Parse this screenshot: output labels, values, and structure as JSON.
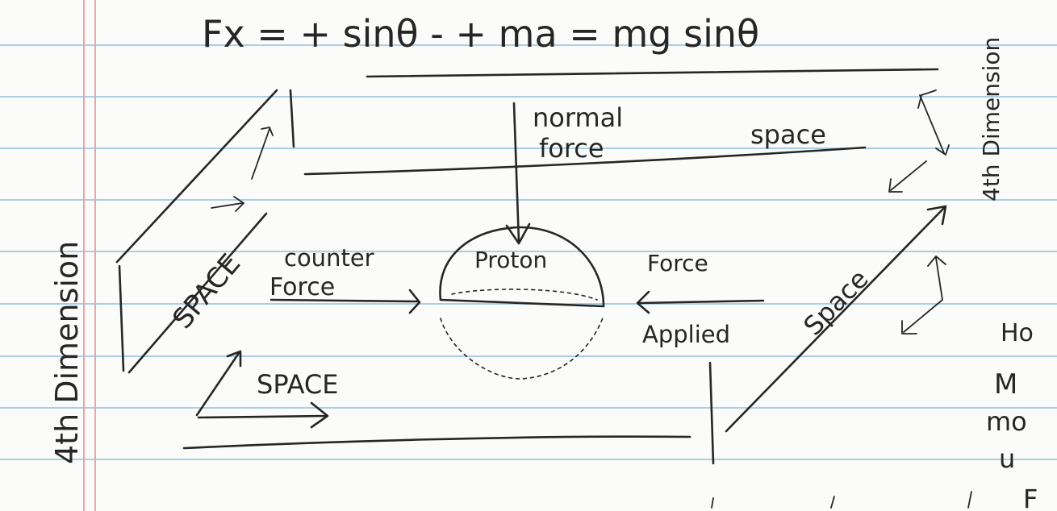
{
  "equation": "Fx = + sinθ - +   ma = mg sinθ",
  "labels": {
    "normal_force_line1": "normal",
    "normal_force_line2": "force",
    "space_top": "space",
    "space_left": "SPACE",
    "space_bottom": "SPACE",
    "space_right": "Space",
    "counter_line1": "counter",
    "counter_line2": "Force",
    "proton": "Proton",
    "force_applied_line1": "Force",
    "force_applied_line2": "Applied",
    "fourth_dimension_left": "4th Dimension",
    "fourth_dimension_right": "4th Dimension",
    "right_edge_1": "Ho",
    "right_edge_2": "M",
    "right_edge_3": "mo",
    "right_edge_4": "u",
    "bottom_edge": "F"
  },
  "colors": {
    "paper": "#fbfbf9",
    "rule_line": "#a9cfe6",
    "margin_line": "#e8a6ad",
    "ink": "#262626"
  }
}
